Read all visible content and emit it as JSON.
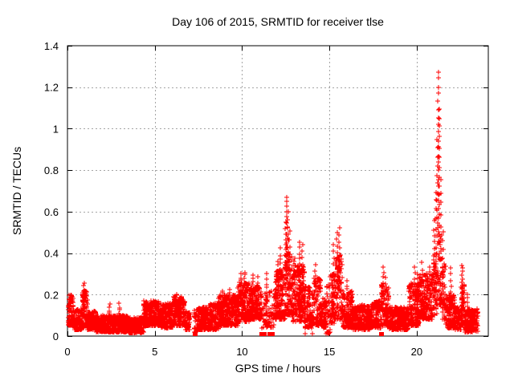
{
  "window": {
    "background": "#ffffff"
  },
  "chart_data": {
    "type": "scatter",
    "marker": "plus",
    "title": "Day 106 of 2015, SRMTID for receiver tlse",
    "xlabel": "GPS time / hours",
    "ylabel": "SRMTID / TECUs",
    "xlim": [
      0,
      24.1
    ],
    "ylim": [
      0,
      1.4
    ],
    "grid": true,
    "legend": "none",
    "series_name": "SRMTID",
    "x_tick_values": [
      0,
      5,
      10,
      15,
      20
    ],
    "x_tick_labels": [
      "0",
      "5",
      "10",
      "15",
      "20"
    ],
    "y_tick_values": [
      0,
      0.2,
      0.4,
      0.6,
      0.8,
      1.0,
      1.2,
      1.4
    ],
    "y_tick_labels": [
      "0",
      "0.2",
      "0.4",
      "0.6",
      "0.8",
      "1",
      "1.2",
      "1.4"
    ],
    "colors": {
      "marker": "#ff0000",
      "grid": "#a5a5a5",
      "axis": "#000000",
      "text": "#000000"
    },
    "bands_format": [
      "t_start_hr",
      "t_end_hr",
      "y_min_TECU",
      "y_max_TECU",
      "points_per_hour"
    ],
    "bands": [
      [
        0.0,
        0.35,
        0.05,
        0.2,
        260
      ],
      [
        0.35,
        0.85,
        0.03,
        0.13,
        260
      ],
      [
        0.85,
        1.15,
        0.04,
        0.22,
        260
      ],
      [
        1.15,
        1.65,
        0.03,
        0.12,
        260
      ],
      [
        1.65,
        3.45,
        0.02,
        0.1,
        280
      ],
      [
        3.45,
        4.35,
        0.015,
        0.09,
        260
      ],
      [
        4.35,
        5.35,
        0.05,
        0.17,
        280
      ],
      [
        5.35,
        6.05,
        0.04,
        0.16,
        280
      ],
      [
        6.05,
        6.75,
        0.05,
        0.19,
        260
      ],
      [
        6.75,
        7.0,
        0.03,
        0.12,
        180
      ],
      [
        7.25,
        7.45,
        0.02,
        0.13,
        130
      ],
      [
        7.45,
        8.05,
        0.03,
        0.14,
        240
      ],
      [
        8.05,
        8.65,
        0.03,
        0.16,
        240
      ],
      [
        8.65,
        9.75,
        0.05,
        0.2,
        280
      ],
      [
        9.75,
        10.4,
        0.07,
        0.26,
        280
      ],
      [
        10.4,
        11.1,
        0.08,
        0.24,
        260
      ],
      [
        11.1,
        11.9,
        0.04,
        0.22,
        100
      ],
      [
        11.9,
        12.45,
        0.08,
        0.32,
        280
      ],
      [
        12.45,
        12.85,
        0.1,
        0.4,
        260
      ],
      [
        12.85,
        13.6,
        0.07,
        0.34,
        280
      ],
      [
        13.6,
        14.1,
        0.04,
        0.24,
        220
      ],
      [
        14.1,
        14.5,
        0.05,
        0.28,
        220
      ],
      [
        14.5,
        14.85,
        0.04,
        0.18,
        200
      ],
      [
        14.85,
        15.05,
        0.01,
        0.25,
        140
      ],
      [
        15.05,
        15.35,
        0.06,
        0.3,
        220
      ],
      [
        15.35,
        15.75,
        0.08,
        0.4,
        240
      ],
      [
        15.75,
        16.35,
        0.04,
        0.22,
        240
      ],
      [
        16.35,
        17.35,
        0.03,
        0.15,
        260
      ],
      [
        17.35,
        17.95,
        0.04,
        0.17,
        240
      ],
      [
        17.95,
        18.4,
        0.05,
        0.25,
        220
      ],
      [
        18.4,
        19.55,
        0.03,
        0.14,
        260
      ],
      [
        19.55,
        20.15,
        0.05,
        0.26,
        260
      ],
      [
        20.15,
        20.9,
        0.08,
        0.3,
        260
      ],
      [
        20.9,
        21.15,
        0.1,
        0.4,
        200
      ],
      [
        21.15,
        21.45,
        0.15,
        0.5,
        160
      ],
      [
        21.45,
        21.65,
        0.08,
        0.35,
        180
      ],
      [
        21.65,
        22.2,
        0.04,
        0.2,
        240
      ],
      [
        22.2,
        22.55,
        0.03,
        0.14,
        220
      ],
      [
        22.55,
        22.75,
        0.05,
        0.25,
        240
      ],
      [
        22.75,
        23.5,
        0.02,
        0.13,
        240
      ]
    ],
    "spike_columns_format": [
      "t_hr",
      "y_min_TECU",
      "y_max_TECU",
      "n_points"
    ],
    "spike_columns": [
      [
        0.95,
        0.12,
        0.25,
        12
      ],
      [
        2.4,
        0.08,
        0.15,
        6
      ],
      [
        2.95,
        0.08,
        0.15,
        6
      ],
      [
        6.25,
        0.12,
        0.21,
        8
      ],
      [
        6.45,
        0.12,
        0.19,
        6
      ],
      [
        8.85,
        0.12,
        0.22,
        7
      ],
      [
        9.3,
        0.12,
        0.22,
        7
      ],
      [
        9.95,
        0.15,
        0.3,
        10
      ],
      [
        10.15,
        0.15,
        0.31,
        10
      ],
      [
        10.6,
        0.15,
        0.3,
        9
      ],
      [
        10.9,
        0.14,
        0.28,
        8
      ],
      [
        11.4,
        0.1,
        0.3,
        10
      ],
      [
        12.05,
        0.2,
        0.36,
        9
      ],
      [
        12.2,
        0.2,
        0.42,
        10
      ],
      [
        12.5,
        0.3,
        0.55,
        10
      ],
      [
        12.57,
        0.35,
        0.67,
        14
      ],
      [
        12.63,
        0.3,
        0.6,
        10
      ],
      [
        12.72,
        0.25,
        0.5,
        8
      ],
      [
        13.0,
        0.25,
        0.38,
        7
      ],
      [
        13.3,
        0.25,
        0.45,
        9
      ],
      [
        13.45,
        0.22,
        0.44,
        8
      ],
      [
        14.2,
        0.22,
        0.34,
        6
      ],
      [
        15.25,
        0.2,
        0.45,
        8
      ],
      [
        15.45,
        0.2,
        0.5,
        10
      ],
      [
        15.55,
        0.25,
        0.52,
        9
      ],
      [
        16.0,
        0.15,
        0.27,
        6
      ],
      [
        18.1,
        0.15,
        0.33,
        8
      ],
      [
        18.25,
        0.12,
        0.28,
        6
      ],
      [
        19.9,
        0.15,
        0.33,
        8
      ],
      [
        20.05,
        0.15,
        0.3,
        7
      ],
      [
        20.3,
        0.18,
        0.35,
        7
      ],
      [
        20.55,
        0.15,
        0.3,
        6
      ],
      [
        20.75,
        0.18,
        0.33,
        7
      ],
      [
        21.0,
        0.25,
        0.55,
        10
      ],
      [
        21.1,
        0.3,
        0.7,
        10
      ],
      [
        21.18,
        0.4,
        0.95,
        14
      ],
      [
        21.24,
        0.5,
        1.28,
        22
      ],
      [
        21.3,
        0.4,
        1.1,
        16
      ],
      [
        21.38,
        0.25,
        0.75,
        10
      ],
      [
        21.5,
        0.15,
        0.5,
        9
      ],
      [
        21.95,
        0.12,
        0.33,
        8
      ],
      [
        22.6,
        0.08,
        0.34,
        16
      ],
      [
        22.9,
        0.06,
        0.2,
        8
      ]
    ],
    "zero_value_squares_t_hr": [
      7.3,
      11.15,
      11.28,
      11.6,
      11.75,
      18.0
    ],
    "near_zero_points": [
      [
        13.62,
        0.01
      ],
      [
        14.05,
        0.01
      ],
      [
        14.82,
        0.012
      ],
      [
        14.88,
        0.02
      ],
      [
        14.94,
        0.008
      ],
      [
        15.0,
        0.015
      ]
    ]
  }
}
